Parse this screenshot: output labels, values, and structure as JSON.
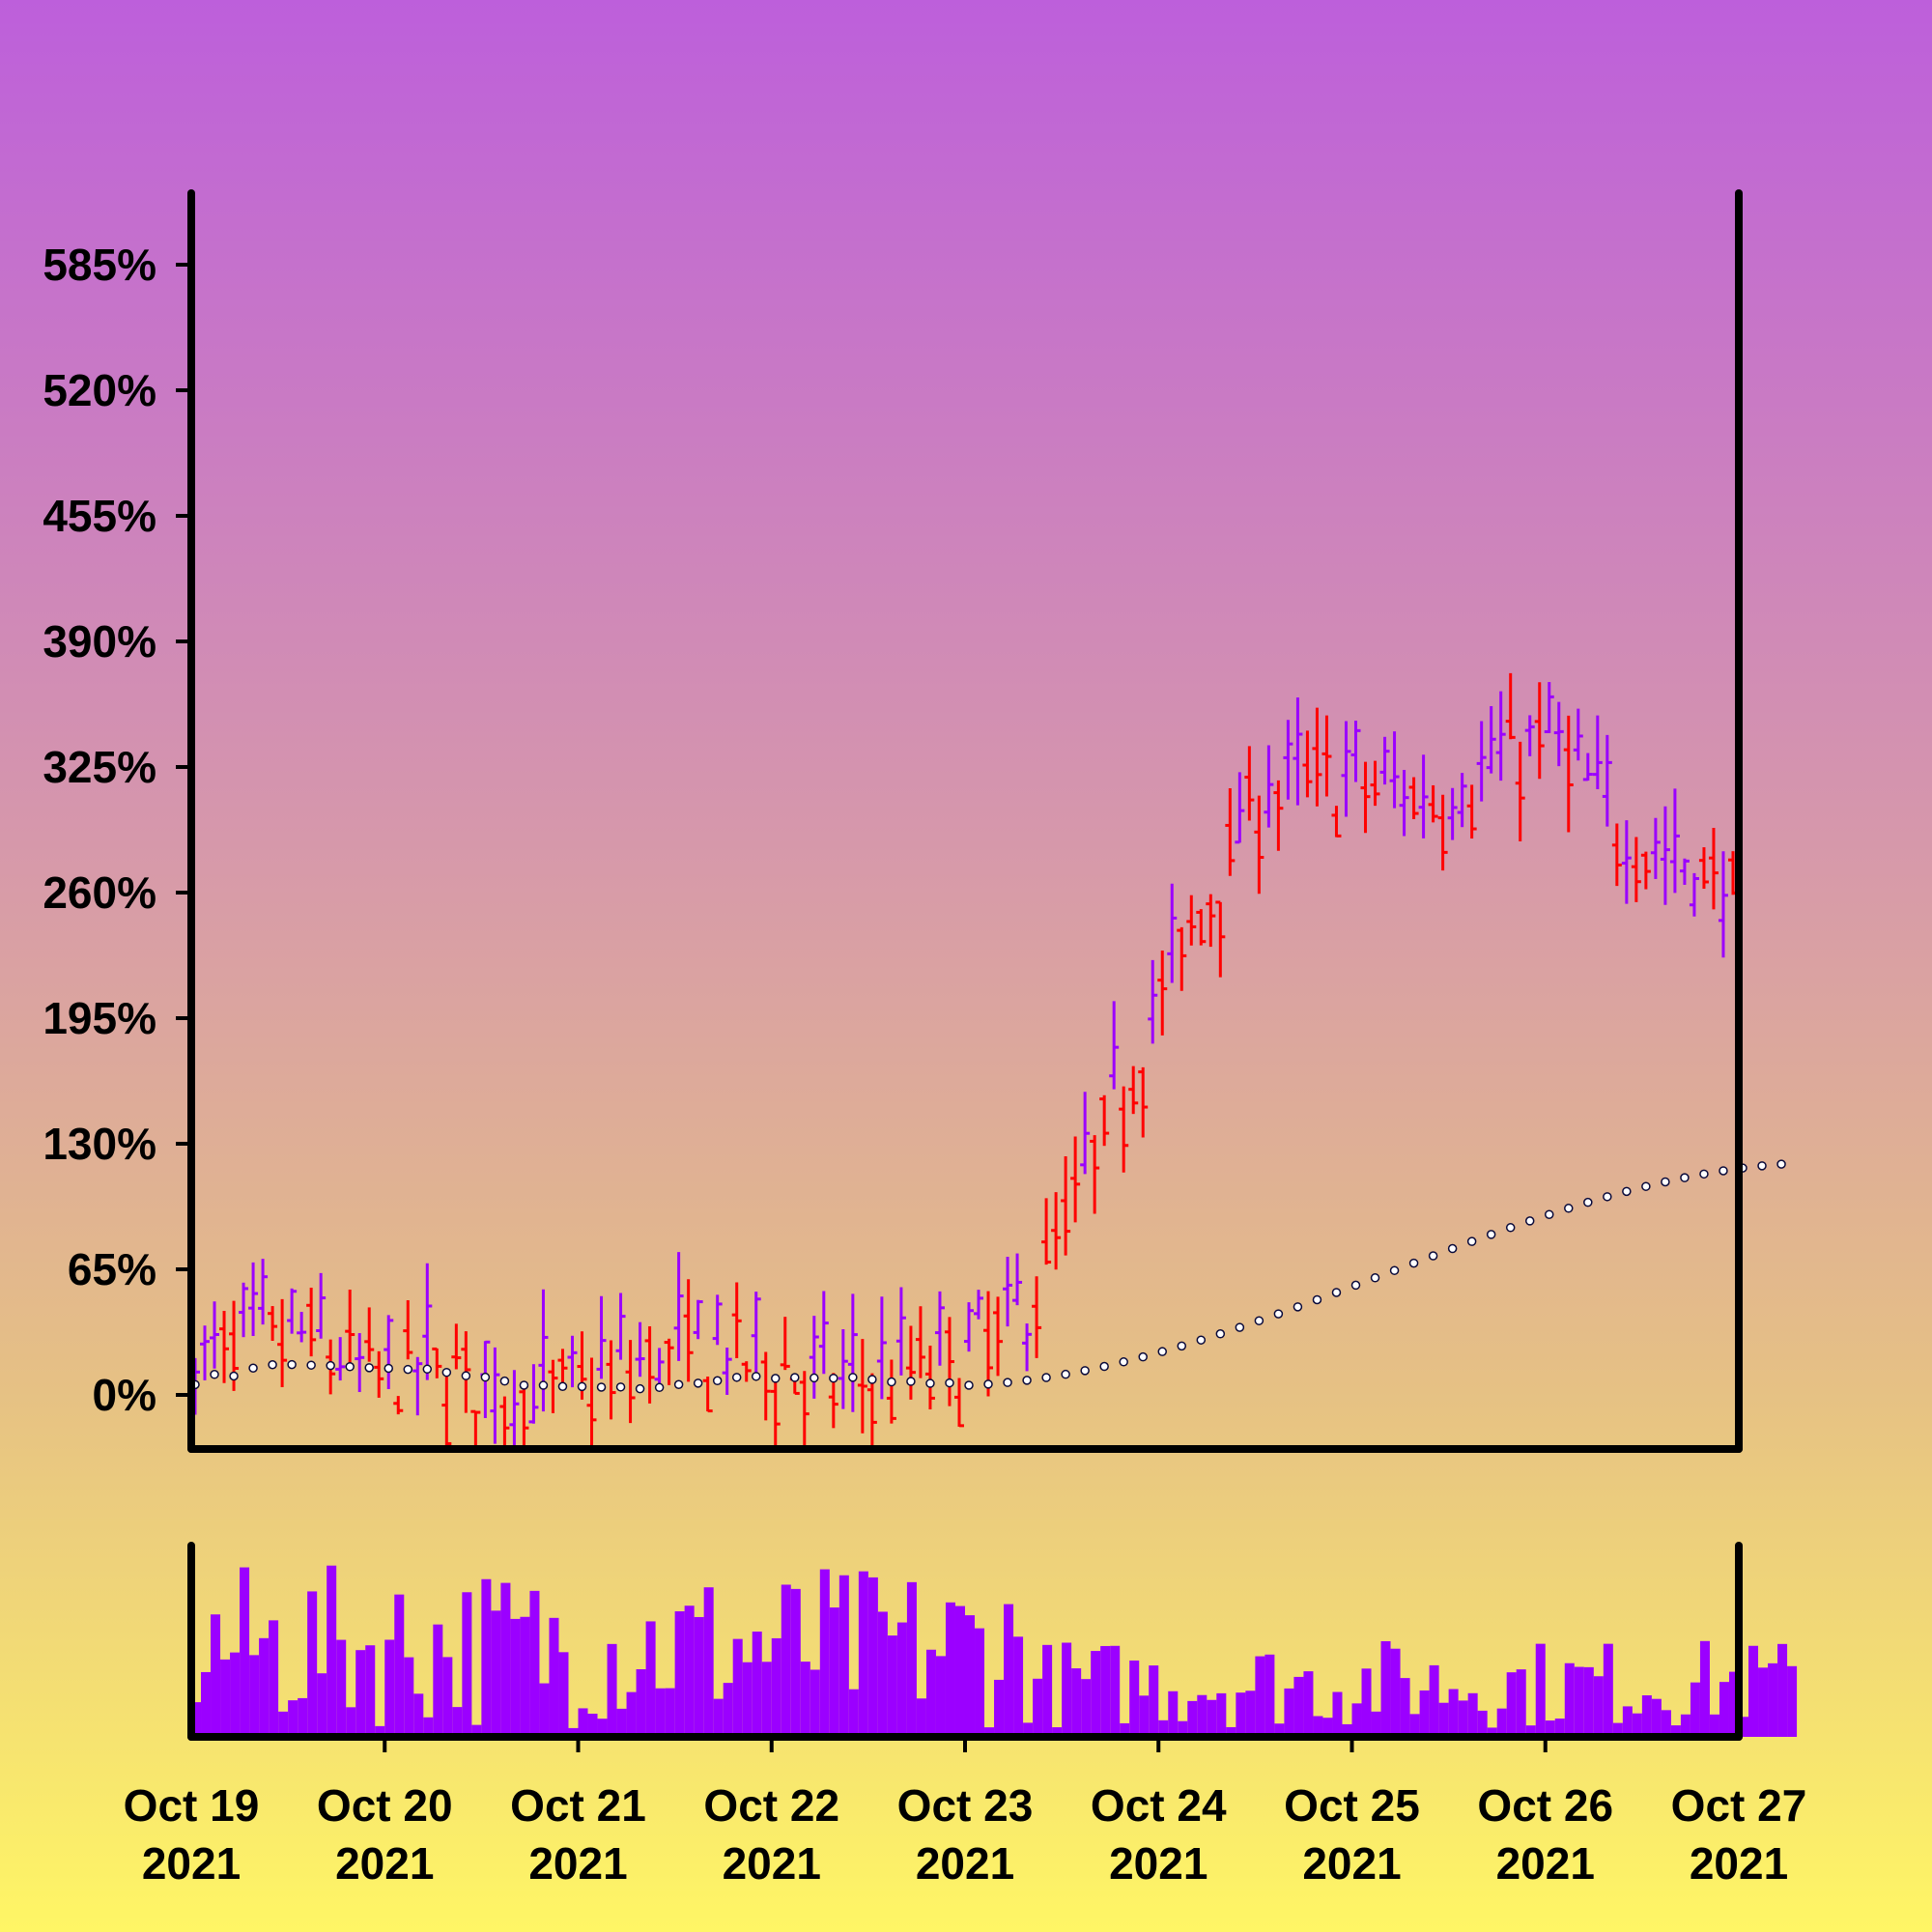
{
  "chart_data": {
    "type": "ohlc",
    "title": "",
    "xlabel": "",
    "ylabel": "",
    "ylim": [
      -28,
      625
    ],
    "y_ticks": [
      {
        "value": 0,
        "label": "0%"
      },
      {
        "value": 65,
        "label": "65%"
      },
      {
        "value": 130,
        "label": "130%"
      },
      {
        "value": 195,
        "label": "195%"
      },
      {
        "value": 260,
        "label": "260%"
      },
      {
        "value": 325,
        "label": "325%"
      },
      {
        "value": 390,
        "label": "390%"
      },
      {
        "value": 455,
        "label": "455%"
      },
      {
        "value": 520,
        "label": "520%"
      },
      {
        "value": 585,
        "label": "585%"
      }
    ],
    "x_ticks": [
      {
        "day": 0,
        "line1": "Oct 19",
        "line2": "2021"
      },
      {
        "day": 1,
        "line1": "Oct 20",
        "line2": "2021"
      },
      {
        "day": 2,
        "line1": "Oct 21",
        "line2": "2021"
      },
      {
        "day": 3,
        "line1": "Oct 22",
        "line2": "2021"
      },
      {
        "day": 4,
        "line1": "Oct 23",
        "line2": "2021"
      },
      {
        "day": 5,
        "line1": "Oct 24",
        "line2": "2021"
      },
      {
        "day": 6,
        "line1": "Oct 25",
        "line2": "2021"
      },
      {
        "day": 7,
        "line1": "Oct 26",
        "line2": "2021"
      },
      {
        "day": 8,
        "line1": "Oct 27",
        "line2": "2021"
      }
    ],
    "up_color": "#9b00ff",
    "down_color": "#ff0000",
    "ma_color": "#0a0a3a",
    "volume_color": "#9b00ff",
    "trend": [
      [
        0,
        15
      ],
      [
        0.3,
        28
      ],
      [
        0.6,
        30
      ],
      [
        0.9,
        10
      ],
      [
        1.2,
        15
      ],
      [
        1.5,
        5
      ],
      [
        1.8,
        0
      ],
      [
        2.1,
        8
      ],
      [
        2.4,
        20
      ],
      [
        2.7,
        25
      ],
      [
        3.0,
        15
      ],
      [
        3.3,
        5
      ],
      [
        3.6,
        10
      ],
      [
        4.0,
        20
      ],
      [
        4.3,
        45
      ],
      [
        4.6,
        110
      ],
      [
        4.9,
        185
      ],
      [
        5.2,
        250
      ],
      [
        5.5,
        310
      ],
      [
        5.8,
        320
      ],
      [
        6.1,
        315
      ],
      [
        6.4,
        310
      ],
      [
        6.7,
        325
      ],
      [
        7.0,
        340
      ],
      [
        7.3,
        300
      ],
      [
        7.6,
        280
      ],
      [
        7.9,
        265
      ],
      [
        8.1,
        240
      ],
      [
        8.3,
        248
      ]
    ],
    "ma_rise_start": 4.0,
    "ma_rise_end": 8.3,
    "ma_end_value": 120,
    "candles_per_day": 20,
    "seed": 7,
    "volume_range": [
      5,
      100
    ]
  }
}
